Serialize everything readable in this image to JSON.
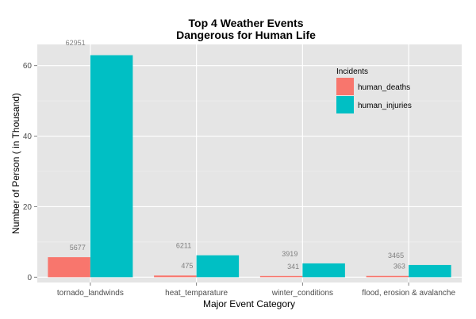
{
  "chart_data": {
    "type": "bar",
    "title_lines": [
      "Top 4 Weather Events",
      "Dangerous for Human Life"
    ],
    "xlabel": "Major Event Category",
    "ylabel": "Number of Person  ( in Thousand)",
    "categories": [
      "tornado_landwinds",
      "heat_temparature",
      "winter_conditions",
      "flood, erosion & avalanche"
    ],
    "series": [
      {
        "name": "human_deaths",
        "color": "#F8766D",
        "values": [
          5.677,
          0.475,
          0.341,
          0.363
        ],
        "labels": [
          "5677",
          "475",
          "341",
          "363"
        ]
      },
      {
        "name": "human_injuries",
        "color": "#00BFC4",
        "values": [
          62.951,
          6.211,
          3.919,
          3.465
        ],
        "labels": [
          "62951",
          "6211",
          "3919",
          "3465"
        ]
      }
    ],
    "ylim": [
      -1.5,
      66.0
    ],
    "yticks": [
      0,
      20,
      40,
      60
    ],
    "grid": true,
    "legend": {
      "title": "Incidents",
      "placement": "top-right"
    }
  }
}
